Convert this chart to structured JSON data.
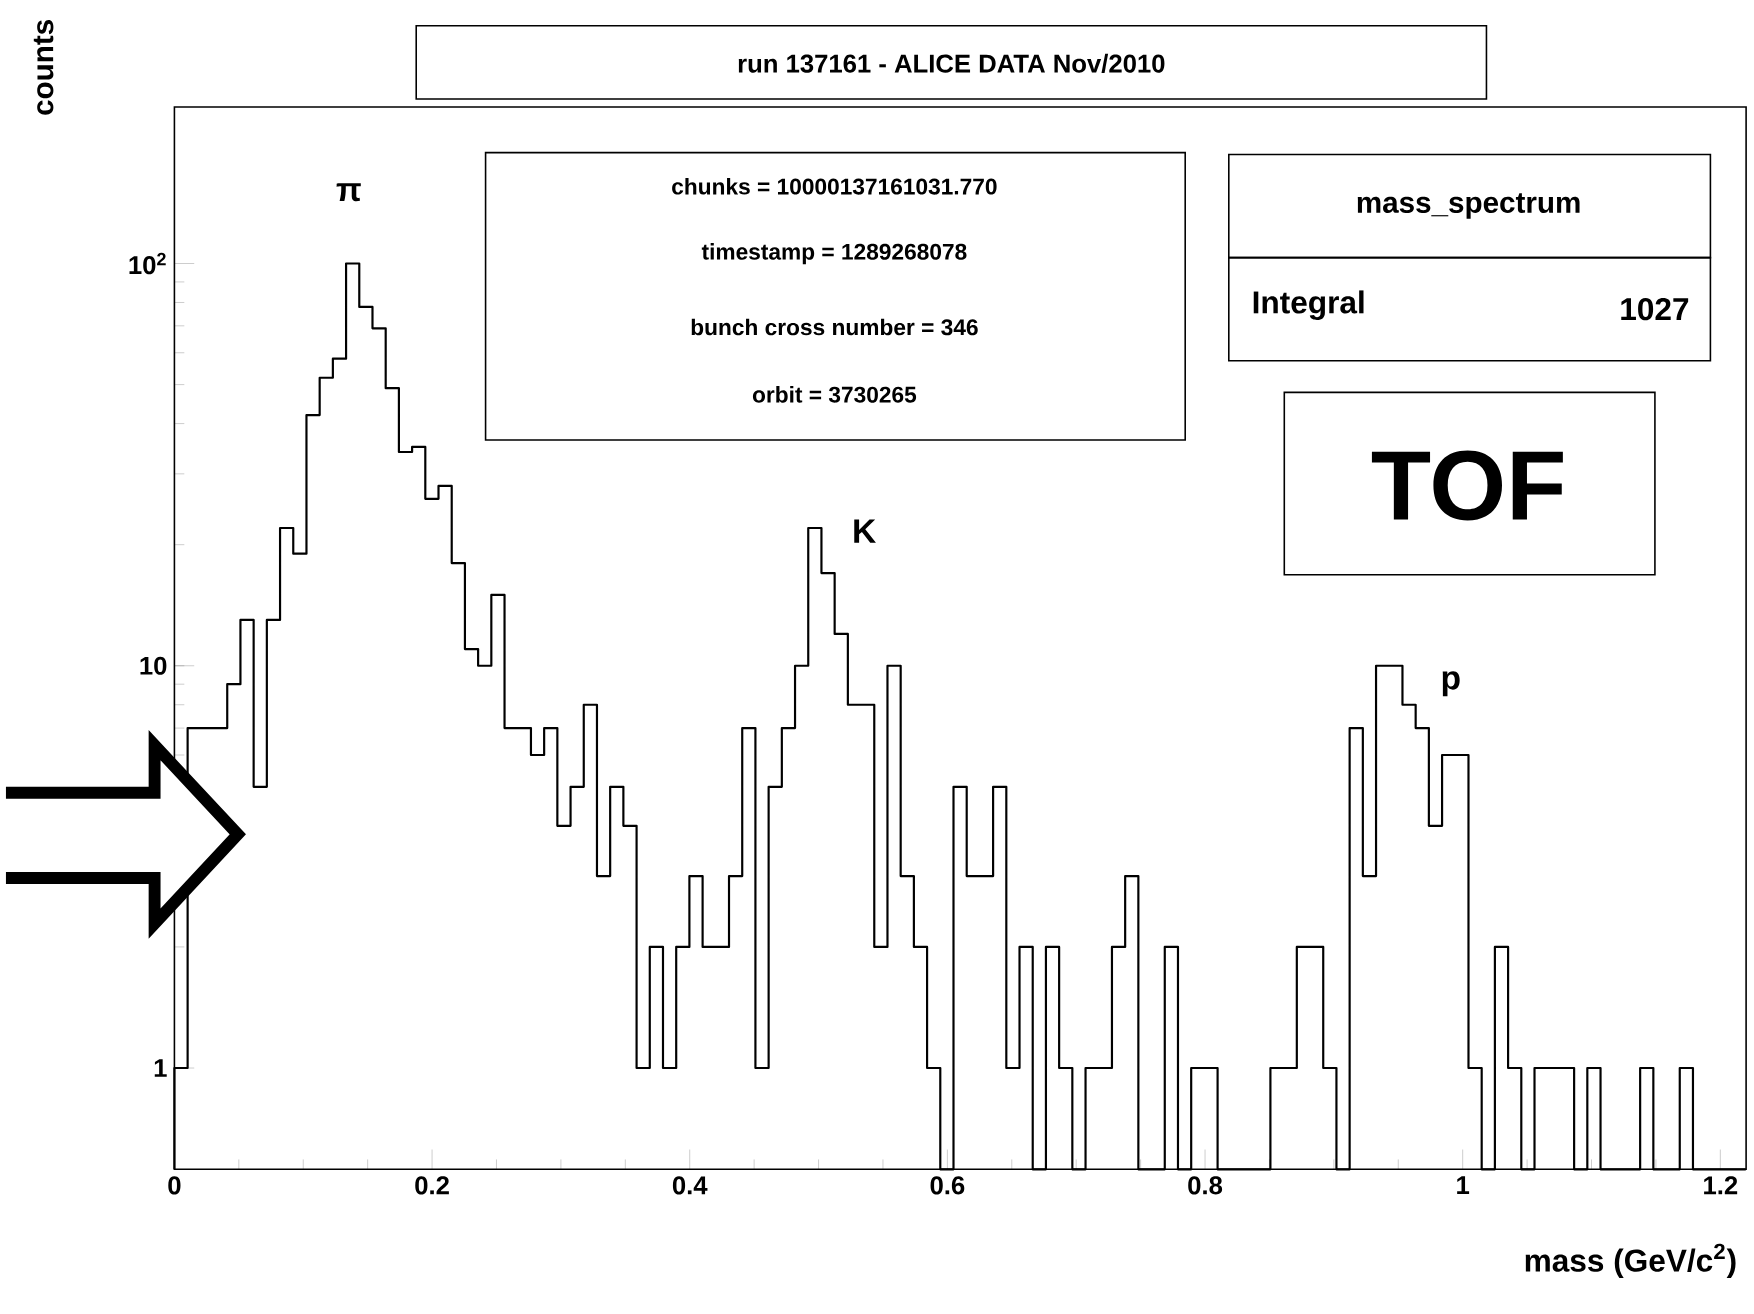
{
  "chart_data": {
    "type": "histogram",
    "title": "run 137161 - ALICE DATA Nov/2010",
    "xlabel": "mass (GeV/c$^{2}$)",
    "ylabel": "counts",
    "bins": [
      0,
      0.01025,
      0.0205,
      0.03075,
      0.041,
      0.05125,
      0.0615,
      0.07175,
      0.082,
      0.09225,
      0.1025,
      0.11275,
      0.123,
      0.13325,
      0.1435,
      0.15375,
      0.164,
      0.17425,
      0.1845,
      0.19475,
      0.205,
      0.21525,
      0.2255,
      0.23575,
      0.246,
      0.25625,
      0.2665,
      0.27675,
      0.287,
      0.29725,
      0.3075,
      0.31775,
      0.328,
      0.33825,
      0.3485,
      0.35875,
      0.369,
      0.37925,
      0.3895,
      0.39975,
      0.41,
      0.42025,
      0.4305,
      0.44075,
      0.451,
      0.46125,
      0.4715,
      0.48175,
      0.492,
      0.50225,
      0.5125,
      0.52275,
      0.533,
      0.54325,
      0.5535,
      0.56375,
      0.574,
      0.58425,
      0.5945,
      0.60475,
      0.615,
      0.62525,
      0.6355,
      0.64575,
      0.656,
      0.66625,
      0.6765,
      0.68675,
      0.697,
      0.70725,
      0.7175,
      0.72775,
      0.738,
      0.74825,
      0.7585,
      0.76875,
      0.779,
      0.78925,
      0.7995,
      0.80975,
      0.82,
      0.83025,
      0.8405,
      0.85075,
      0.861,
      0.87125,
      0.8815,
      0.89175,
      0.902,
      0.91225,
      0.9225,
      0.93275,
      0.943,
      0.95325,
      0.9635,
      0.97375,
      0.984,
      0.99425,
      1.0045,
      1.01475,
      1.025,
      1.03525,
      1.0455,
      1.05575,
      1.066,
      1.07625,
      1.0865,
      1.09675,
      1.107,
      1.11725,
      1.1275,
      1.13775,
      1.148,
      1.15825,
      1.1685,
      1.17875,
      1.189,
      1.19925,
      1.2095,
      1.21975
    ],
    "values": [
      1,
      7,
      7,
      7,
      9,
      13,
      5,
      13,
      22,
      19,
      42,
      52,
      58,
      100,
      78,
      69,
      49,
      34,
      35,
      26,
      28,
      18,
      11,
      10,
      15,
      7,
      7,
      6,
      7,
      4,
      5,
      8,
      3,
      5,
      4,
      1,
      2,
      1,
      2,
      3,
      2,
      2,
      3,
      7,
      1,
      5,
      7,
      10,
      22,
      17,
      12,
      8,
      8,
      2,
      10,
      3,
      2,
      1,
      null,
      5,
      3,
      3,
      5,
      1,
      2,
      null,
      2,
      1,
      null,
      1,
      1,
      2,
      3,
      null,
      null,
      2,
      null,
      1,
      1,
      null,
      null,
      null,
      null,
      1,
      1,
      2,
      2,
      1,
      null,
      7,
      3,
      10,
      10,
      8,
      7,
      4,
      6,
      6,
      1,
      null,
      2,
      1,
      null,
      1,
      1,
      1,
      null,
      1,
      null,
      null,
      null,
      1,
      null,
      null,
      1,
      null,
      null,
      null,
      null
    ],
    "color": "#000000",
    "xlim": [
      0,
      1.22
    ],
    "ylim": [
      0.56,
      245
    ],
    "log": true,
    "xticks": [
      0,
      0.2,
      0.4,
      0.6,
      0.8,
      1,
      1.2
    ],
    "yticks": [
      1,
      10,
      {
        "value": 100,
        "label": "10$^{2}$"
      }
    ],
    "annotations": [
      "π",
      "K",
      "p",
      "chunks = 10000137161031.770",
      "timestamp = 1289268078",
      "bunch cross number = 346",
      "orbit = 3730265",
      "mass_spectrum",
      "Integral",
      "1027",
      "TOF"
    ]
  }
}
